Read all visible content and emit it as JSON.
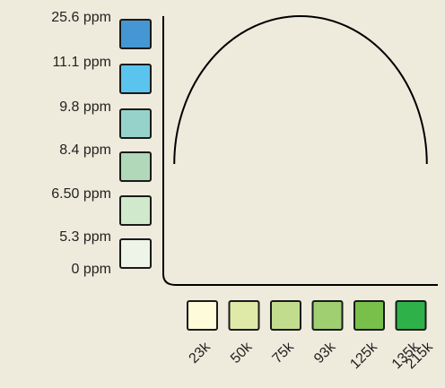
{
  "chart_data": {
    "type": "line",
    "title": "",
    "xlabel": "",
    "ylabel": "",
    "x_ticks": [
      {
        "label": "23k",
        "color": "#fdfbd9"
      },
      {
        "label": "50k",
        "color": "#e0eaa8"
      },
      {
        "label": "75k",
        "color": "#c2dc8d"
      },
      {
        "label": "93k",
        "color": "#9fcf71"
      },
      {
        "label": "125k",
        "color": "#79c04b"
      },
      {
        "label": "135k",
        "color": "#2fb14a"
      },
      {
        "label": "215k",
        "color": "#2fb14a"
      }
    ],
    "y_ticks": [
      {
        "label": "25.6 ppm",
        "color": "#4497d2"
      },
      {
        "label": "11.1 ppm",
        "color": "#5bc4ee"
      },
      {
        "label": "9.8 ppm",
        "color": "#96d2c9"
      },
      {
        "label": "8.4 ppm",
        "color": "#b1d8b9"
      },
      {
        "label": "6.50 ppm",
        "color": "#d0e8cc"
      },
      {
        "label": "5.3 ppm",
        "color": "#eef4e8"
      },
      {
        "label": "0 ppm",
        "color": "#eef4e8"
      }
    ],
    "series": [
      {
        "points": [
          {
            "x": 0.04,
            "y": 0.45
          },
          {
            "x": 0.5,
            "y": 1.0
          },
          {
            "x": 0.96,
            "y": 0.45
          }
        ]
      }
    ],
    "grid": false,
    "legend": "none",
    "colors": {
      "axis": "#000000",
      "curve": "#000000",
      "swatch_border": "#1a1a1a"
    }
  }
}
